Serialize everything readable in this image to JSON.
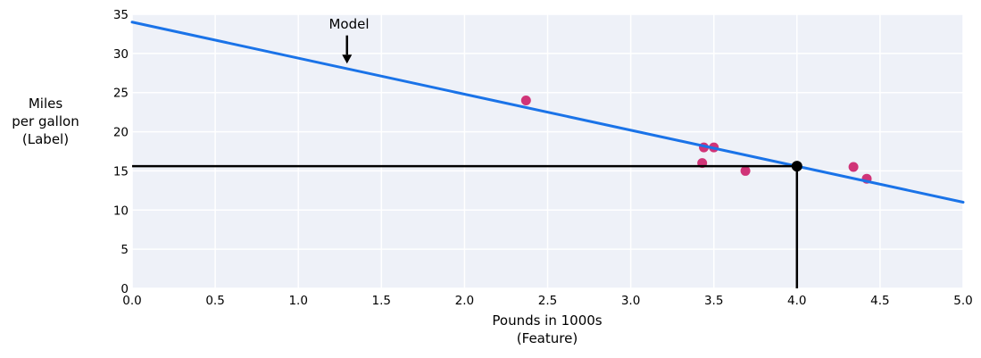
{
  "figure": {
    "background": "#ffffff",
    "plot_background": "#eef1f8",
    "grid_color": "#ffffff",
    "text_color": "#000000"
  },
  "chart_data": {
    "type": "scatter",
    "title": "",
    "xlabel": "Pounds in 1000s (Feature)",
    "xlabel_lines": "Pounds in 1000s\n(Feature)",
    "ylabel": "Miles per gallon (Label)",
    "ylabel_lines": "Miles\nper gallon\n(Label)",
    "xlim": [
      0,
      5
    ],
    "ylim": [
      0,
      35
    ],
    "grid": true,
    "legend": "none",
    "x_tick_values": [
      0,
      0.5,
      1,
      1.5,
      2,
      2.5,
      3,
      3.5,
      4,
      4.5,
      5
    ],
    "x_tick_labels": [
      "0.0",
      "0.5",
      "1.0",
      "1.5",
      "2.0",
      "2.5",
      "3.0",
      "3.5",
      "4.0",
      "4.5",
      "5.0"
    ],
    "y_tick_values": [
      0,
      5,
      10,
      15,
      20,
      25,
      30,
      35
    ],
    "y_tick_labels": [
      "0",
      "5",
      "10",
      "15",
      "20",
      "25",
      "30",
      "35"
    ],
    "series": [
      {
        "name": "training-examples",
        "type": "scatter",
        "color": "#d03478",
        "marker_radius": 5.5,
        "points": [
          {
            "x": 2.37,
            "y": 24
          },
          {
            "x": 3.43,
            "y": 16
          },
          {
            "x": 3.44,
            "y": 18
          },
          {
            "x": 3.5,
            "y": 18
          },
          {
            "x": 3.69,
            "y": 15
          },
          {
            "x": 4.34,
            "y": 15.5
          },
          {
            "x": 4.42,
            "y": 14
          }
        ]
      },
      {
        "name": "model-line",
        "type": "line",
        "color": "#1a73e8",
        "equation": "y' = 34 - 4.6x",
        "intercept": 34,
        "slope": -4.6,
        "x_range": [
          0,
          5
        ],
        "line_width": 3
      }
    ],
    "prediction": {
      "x": 4.0,
      "y": 15.6,
      "color": "#000000",
      "line_width": 2.5,
      "dot_radius": 6
    },
    "annotation": {
      "text": "Model",
      "arrow": {
        "x": 1.293,
        "from_y": 32.3,
        "to_y": 28.7,
        "head_width": 11,
        "head_length": 10
      }
    }
  }
}
